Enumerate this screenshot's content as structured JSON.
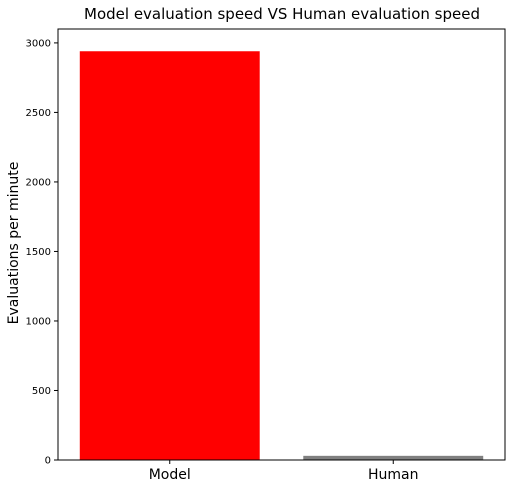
{
  "chart_data": {
    "type": "bar",
    "title": "Model evaluation speed VS Human evaluation speed",
    "xlabel": "",
    "ylabel": "Evaluations per minute",
    "categories": [
      "Model",
      "Human"
    ],
    "values": [
      2940,
      30
    ],
    "colors": [
      "#ff0000",
      "#808080"
    ],
    "ylim": [
      0,
      3100
    ],
    "yticks": [
      0,
      500,
      1000,
      1500,
      2000,
      2500,
      3000
    ],
    "grid": false,
    "legend": "none"
  }
}
